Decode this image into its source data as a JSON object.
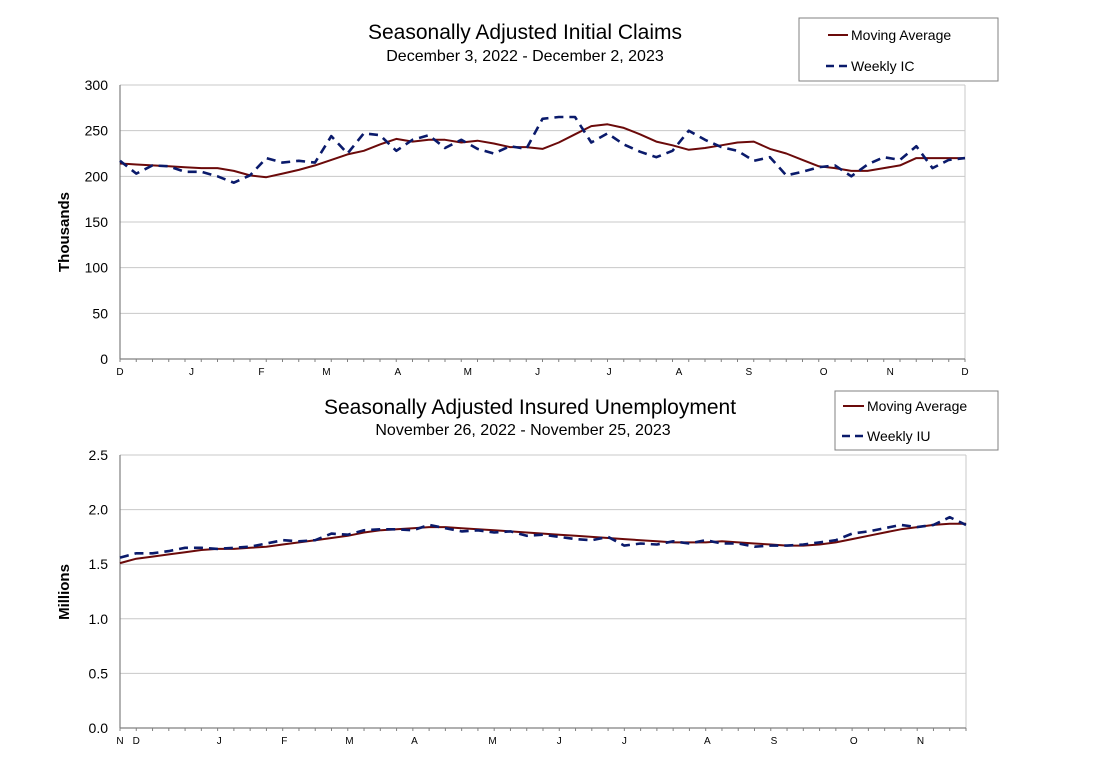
{
  "colors": {
    "moving_average": "#6b0a0a",
    "weekly": "#0a1a6b",
    "grid": "#c8c8c8",
    "axis": "#808080"
  },
  "chart_data": [
    {
      "type": "line",
      "title": "Seasonally Adjusted Initial Claims",
      "subtitle": "December 3, 2022 - December 2, 2023",
      "ylabel": "Thousands",
      "ylim": [
        0,
        300
      ],
      "yticks": [
        "0",
        "50",
        "100",
        "150",
        "200",
        "250",
        "300"
      ],
      "ytick_values": [
        0,
        50,
        100,
        150,
        200,
        250,
        300
      ],
      "xtick_labels": [
        "D",
        "J",
        "F",
        "M",
        "A",
        "M",
        "J",
        "J",
        "A",
        "S",
        "O",
        "N",
        "D"
      ],
      "xtick_weeks": [
        0,
        4.4,
        8.7,
        12.7,
        17.1,
        21.4,
        25.7,
        30.1,
        34.4,
        38.7,
        43.3,
        47.4,
        52
      ],
      "weeks": 52,
      "grid": true,
      "legend": "top-right",
      "series": [
        {
          "name": "Moving Average",
          "style": "solid",
          "values": [
            214,
            213,
            212,
            211,
            210,
            209,
            209,
            206,
            201,
            199,
            203,
            207,
            212,
            218,
            224,
            228,
            235,
            241,
            238,
            240,
            240,
            237,
            239,
            236,
            232,
            232,
            230,
            237,
            246,
            255,
            257,
            253,
            246,
            238,
            234,
            229,
            231,
            234,
            237,
            238,
            230,
            225,
            218,
            211,
            209,
            206,
            206,
            209,
            212,
            220,
            220,
            220,
            220
          ]
        },
        {
          "name": "Weekly IC",
          "style": "dashed",
          "values": [
            217,
            203,
            212,
            211,
            205,
            205,
            200,
            193,
            201,
            220,
            215,
            217,
            215,
            244,
            225,
            247,
            245,
            228,
            240,
            245,
            231,
            240,
            230,
            225,
            233,
            230,
            263,
            265,
            265,
            237,
            247,
            235,
            227,
            221,
            228,
            250,
            240,
            232,
            228,
            217,
            221,
            201,
            205,
            210,
            212,
            200,
            213,
            221,
            218,
            233,
            209,
            218,
            220
          ]
        }
      ]
    },
    {
      "type": "line",
      "title": "Seasonally Adjusted Insured Unemployment",
      "subtitle": "November 26, 2022 - November 25, 2023",
      "ylabel": "Millions",
      "ylim": [
        0.0,
        2.5
      ],
      "yticks": [
        "0.0",
        "0.5",
        "1.0",
        "1.5",
        "2.0",
        "2.5"
      ],
      "ytick_values": [
        0.0,
        0.5,
        1.0,
        1.5,
        2.0,
        2.5
      ],
      "xtick_labels": [
        "N",
        "D",
        "J",
        "F",
        "M",
        "A",
        "M",
        "J",
        "J",
        "A",
        "S",
        "O",
        "N"
      ],
      "xtick_weeks": [
        0,
        1,
        6.1,
        10.1,
        14.1,
        18.1,
        22.9,
        27.0,
        31.0,
        36.1,
        40.2,
        45.1,
        49.2
      ],
      "weeks": 52,
      "grid": true,
      "legend": "top-right",
      "series": [
        {
          "name": "Moving Average",
          "style": "solid",
          "values": [
            1.51,
            1.55,
            1.57,
            1.59,
            1.61,
            1.63,
            1.64,
            1.64,
            1.65,
            1.66,
            1.68,
            1.7,
            1.72,
            1.74,
            1.76,
            1.79,
            1.81,
            1.82,
            1.83,
            1.84,
            1.84,
            1.83,
            1.82,
            1.81,
            1.8,
            1.79,
            1.78,
            1.77,
            1.76,
            1.75,
            1.74,
            1.73,
            1.72,
            1.71,
            1.7,
            1.7,
            1.7,
            1.71,
            1.7,
            1.69,
            1.68,
            1.67,
            1.67,
            1.68,
            1.7,
            1.73,
            1.76,
            1.79,
            1.82,
            1.84,
            1.86,
            1.87,
            1.87
          ]
        },
        {
          "name": "Weekly IU",
          "style": "dashed",
          "values": [
            1.56,
            1.6,
            1.6,
            1.62,
            1.65,
            1.65,
            1.64,
            1.65,
            1.66,
            1.69,
            1.72,
            1.71,
            1.72,
            1.78,
            1.77,
            1.81,
            1.82,
            1.82,
            1.81,
            1.86,
            1.83,
            1.8,
            1.81,
            1.79,
            1.8,
            1.76,
            1.77,
            1.75,
            1.73,
            1.72,
            1.75,
            1.67,
            1.69,
            1.68,
            1.71,
            1.69,
            1.72,
            1.69,
            1.69,
            1.66,
            1.67,
            1.67,
            1.68,
            1.7,
            1.72,
            1.78,
            1.8,
            1.83,
            1.86,
            1.84,
            1.86,
            1.93,
            1.86
          ]
        }
      ]
    }
  ]
}
